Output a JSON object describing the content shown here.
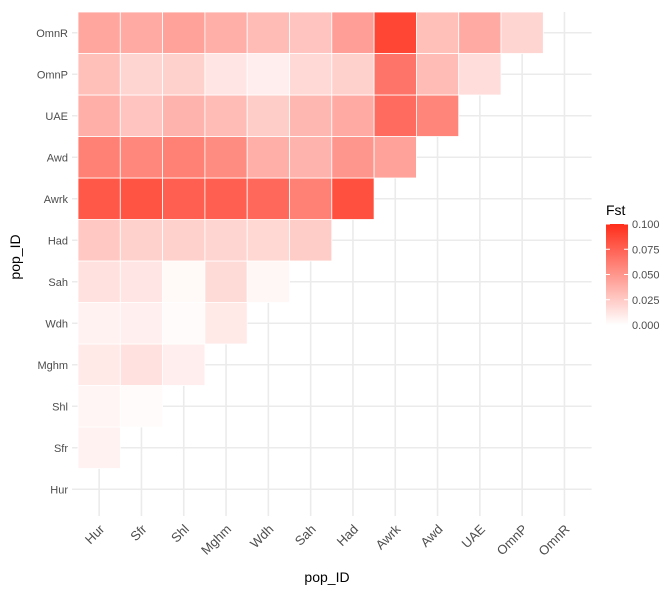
{
  "chart_data": {
    "type": "heatmap",
    "xlabel": "pop_ID",
    "ylabel": "pop_ID",
    "x_categories": [
      "Hur",
      "Sfr",
      "Shl",
      "Mghm",
      "Wdh",
      "Sah",
      "Had",
      "Awrk",
      "Awd",
      "UAE",
      "OmnP",
      "OmnR"
    ],
    "y_categories_bottom_to_top": [
      "Hur",
      "Sfr",
      "Shl",
      "Mghm",
      "Wdh",
      "Sah",
      "Had",
      "Awrk",
      "Awd",
      "UAE",
      "OmnP",
      "OmnR"
    ],
    "legend": {
      "title": "Fst",
      "position": "right",
      "ticks": [
        "0.100",
        "0.075",
        "0.050",
        "0.025",
        "0.000"
      ],
      "tick_values": [
        0.1,
        0.075,
        0.05,
        0.025,
        0.0
      ],
      "range": [
        0,
        0.1
      ],
      "color_low": "#ffffff",
      "color_high": "#ff2d1a"
    },
    "grid": true,
    "rows": [
      {
        "y": "Sfr",
        "values": [
          0.006
        ]
      },
      {
        "y": "Shl",
        "values": [
          0.005,
          0.002
        ]
      },
      {
        "y": "Mghm",
        "values": [
          0.01,
          0.014,
          0.008
        ]
      },
      {
        "y": "Wdh",
        "values": [
          0.006,
          0.007,
          0.002,
          0.01
        ]
      },
      {
        "y": "Sah",
        "values": [
          0.014,
          0.012,
          0.003,
          0.017,
          0.004
        ]
      },
      {
        "y": "Had",
        "values": [
          0.026,
          0.022,
          0.022,
          0.02,
          0.019,
          0.024
        ]
      },
      {
        "y": "Awrk",
        "values": [
          0.08,
          0.082,
          0.076,
          0.076,
          0.072,
          0.06,
          0.084
        ]
      },
      {
        "y": "Awd",
        "values": [
          0.06,
          0.057,
          0.06,
          0.055,
          0.038,
          0.036,
          0.05,
          0.044
        ]
      },
      {
        "y": "UAE",
        "values": [
          0.038,
          0.028,
          0.036,
          0.032,
          0.024,
          0.034,
          0.04,
          0.07,
          0.058
        ]
      },
      {
        "y": "OmnP",
        "values": [
          0.03,
          0.02,
          0.022,
          0.012,
          0.008,
          0.018,
          0.022,
          0.066,
          0.032,
          0.016
        ]
      },
      {
        "y": "OmnR",
        "values": [
          0.042,
          0.04,
          0.044,
          0.038,
          0.032,
          0.028,
          0.046,
          0.088,
          0.03,
          0.04,
          0.02
        ]
      }
    ]
  }
}
